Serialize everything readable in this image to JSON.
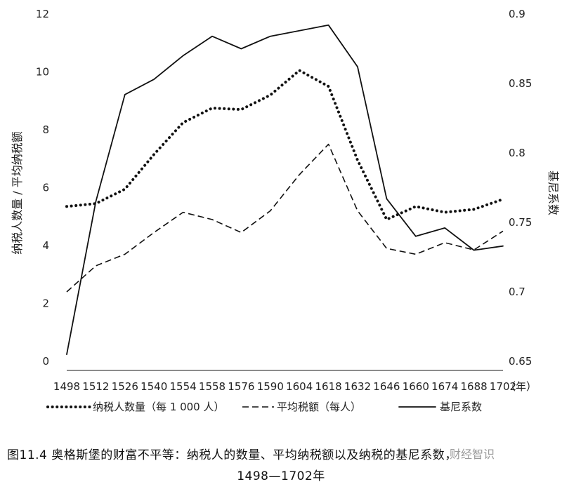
{
  "chart_data": {
    "type": "line",
    "x": [
      1498,
      1512,
      1526,
      1540,
      1554,
      1558,
      1576,
      1590,
      1604,
      1618,
      1632,
      1646,
      1660,
      1674,
      1688,
      1702
    ],
    "x_tick_labels": [
      "1498",
      "1512",
      "1526",
      "1540",
      "1554",
      "1558",
      "1576",
      "1590",
      "1604",
      "1618",
      "1632",
      "1646",
      "1660",
      "1674",
      "1688",
      "1702"
    ],
    "x_unit": "（年）",
    "left_axis": {
      "label": "纳税人数量 / 平均纳税额",
      "ylim": [
        0,
        12
      ],
      "ticks": [
        "0",
        "2",
        "4",
        "6",
        "8",
        "10",
        "12"
      ]
    },
    "right_axis": {
      "label": "基尼系数",
      "ylim": [
        0.65,
        0.9
      ],
      "ticks": [
        "0.65",
        "0.7",
        "0.75",
        "0.8",
        "0.85",
        "0.9"
      ]
    },
    "series": [
      {
        "name": "纳税人数量（每 1 000 人）",
        "axis": "left",
        "style": "dotted",
        "values": [
          5.35,
          5.45,
          5.95,
          7.15,
          8.25,
          8.75,
          8.7,
          9.2,
          10.05,
          9.5,
          6.95,
          4.9,
          5.35,
          5.15,
          5.25,
          5.6
        ]
      },
      {
        "name": "平均税额（每人）",
        "axis": "left",
        "style": "dashed",
        "values": [
          2.4,
          3.3,
          3.7,
          4.45,
          5.15,
          4.9,
          4.45,
          5.2,
          6.45,
          7.5,
          5.2,
          3.9,
          3.7,
          4.1,
          3.85,
          4.5
        ]
      },
      {
        "name": "基尼系数",
        "axis": "right",
        "style": "solid",
        "values": [
          0.655,
          0.765,
          0.842,
          0.853,
          0.87,
          0.884,
          0.875,
          0.884,
          0.888,
          0.892,
          0.862,
          0.767,
          0.74,
          0.746,
          0.73,
          0.733
        ]
      }
    ],
    "grid": false,
    "legend_placement": "bottom"
  },
  "caption": {
    "line1": "图11.4  奥格斯堡的财富不平等：纳税人的数量、平均纳税额以及纳税的基尼系数，",
    "line2": "1498—1702年"
  },
  "watermark": "财经智识"
}
